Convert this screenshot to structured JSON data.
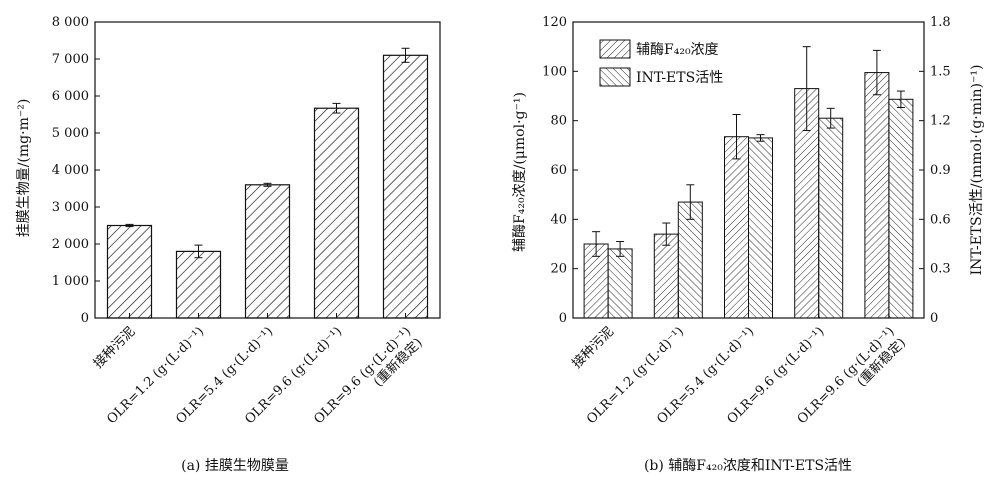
{
  "chart_data": [
    {
      "type": "bar",
      "title": "",
      "caption": "(a) 挂膜生物膜量",
      "ylabel": "挂膜生物量/(mg·m⁻²)",
      "ylim": [
        0,
        8000
      ],
      "yticks": [
        0,
        1000,
        2000,
        3000,
        4000,
        5000,
        6000,
        7000,
        8000
      ],
      "ytick_labels": [
        "0",
        "1 000",
        "2 000",
        "3 000",
        "4 000",
        "5 000",
        "6 000",
        "7 000",
        "8 000"
      ],
      "categories": [
        [
          "接种污泥"
        ],
        [
          "OLR=1.2 (g·(L·d)⁻¹)"
        ],
        [
          "OLR=5.4 (g·(L·d)⁻¹)"
        ],
        [
          "OLR=9.6 (g·(L·d)⁻¹)"
        ],
        [
          "OLR=9.6 (g·(L·d)⁻¹)",
          "(重新稳定)"
        ]
      ],
      "values": [
        2500,
        1800,
        3600,
        5670,
        7100
      ],
      "errors": [
        30,
        170,
        40,
        130,
        190
      ]
    },
    {
      "type": "bar",
      "title": "",
      "caption": "(b) 辅酶F₄₂₀浓度和INT-ETS活性",
      "ylabel": "辅酶F₄₂₀浓度/(μmol·g⁻¹)",
      "ylabel_right": "INT-ETS活性/(mmol·(g·min)⁻¹)",
      "ylim": [
        0,
        120
      ],
      "ylim_right": [
        0,
        1.8
      ],
      "yticks": [
        0,
        20,
        40,
        60,
        80,
        100,
        120
      ],
      "ytick_labels": [
        "0",
        "20",
        "40",
        "60",
        "80",
        "100",
        "120"
      ],
      "yticks_right": [
        0,
        0.3,
        0.6,
        0.9,
        1.2,
        1.5,
        1.8
      ],
      "ytick_labels_right": [
        "0",
        "0.3",
        "0.6",
        "0.9",
        "1.2",
        "1.5",
        "1.8"
      ],
      "categories": [
        [
          "接种污泥"
        ],
        [
          "OLR=1.2 (g·(L·d)⁻¹)"
        ],
        [
          "OLR=5.4 (g·(L·d)⁻¹)"
        ],
        [
          "OLR=9.6 (g·(L·d)⁻¹)"
        ],
        [
          "OLR=9.6 (g·(L·d)⁻¹)",
          "(重新稳定)"
        ]
      ],
      "series": [
        {
          "name": "辅酶F₄₂₀浓度",
          "axis": "left",
          "values": [
            30,
            34,
            73.5,
            93,
            99.5
          ],
          "errors": [
            5,
            4.5,
            9,
            17,
            9
          ]
        },
        {
          "name": "INT-ETS活性",
          "axis": "right",
          "values": [
            0.42,
            0.705,
            1.095,
            1.215,
            1.33
          ],
          "errors": [
            0.045,
            0.105,
            0.02,
            0.06,
            0.05
          ]
        }
      ],
      "legend": "top-left"
    }
  ]
}
